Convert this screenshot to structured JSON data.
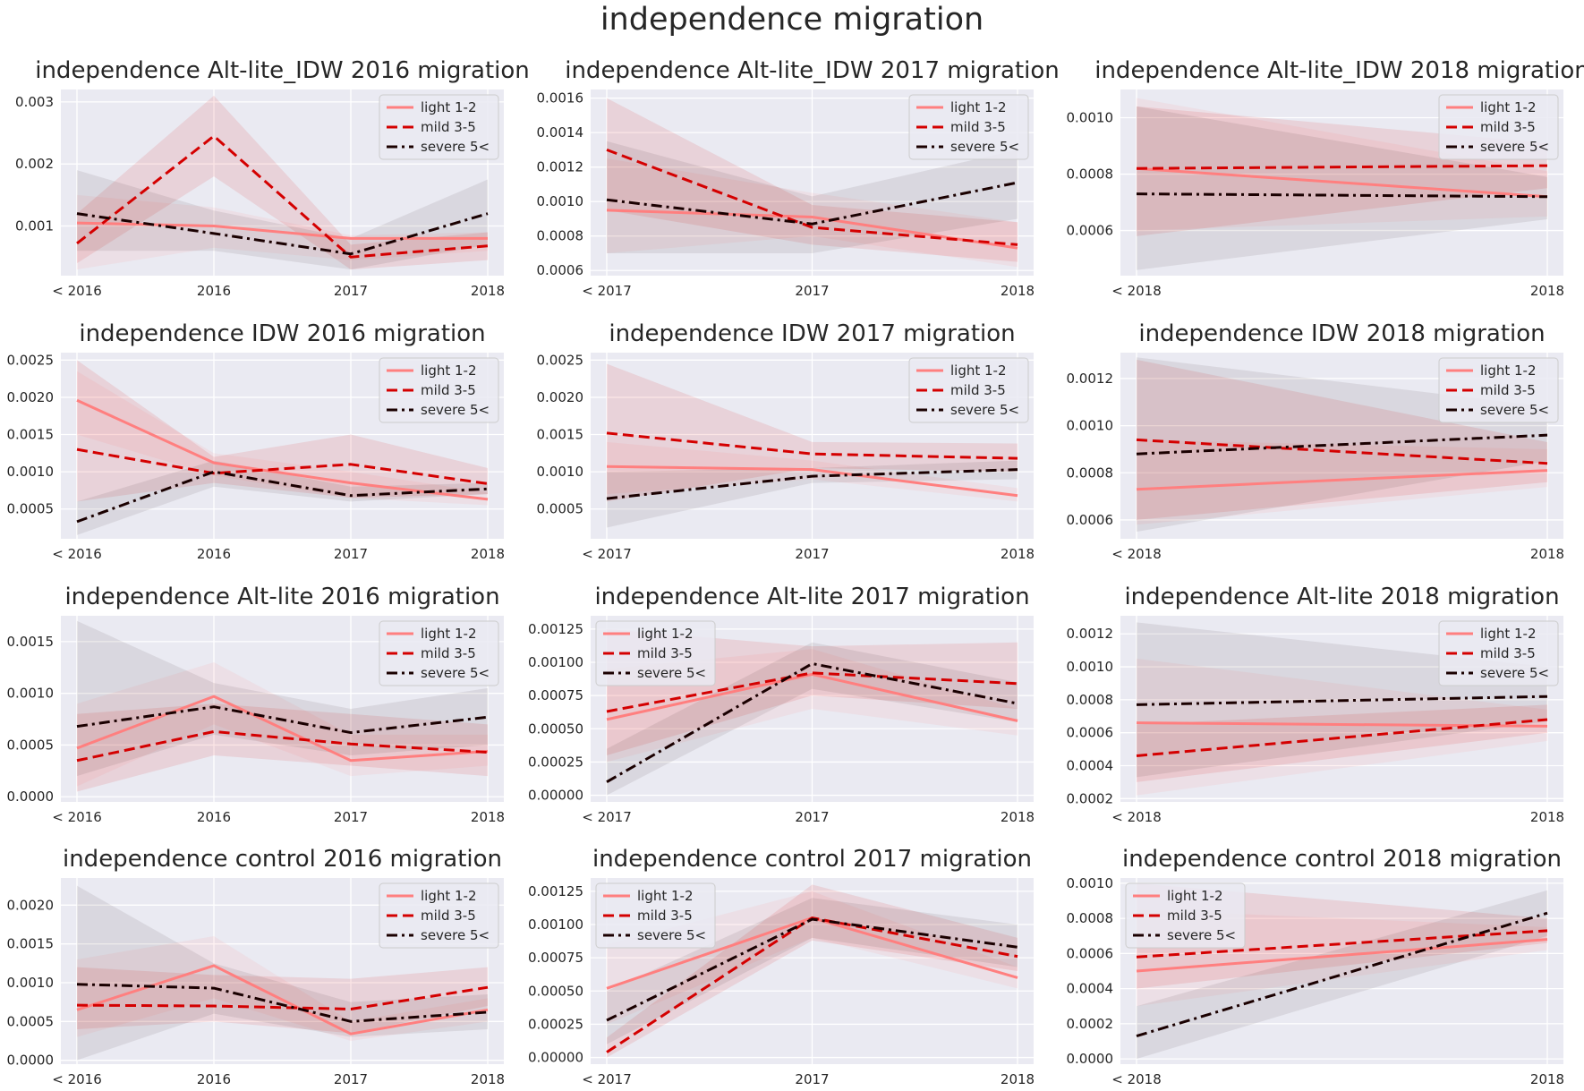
{
  "figure": {
    "title": "independence migration",
    "colors": {
      "background": "#eaeaf2",
      "grid": "#ffffff",
      "light": "#ff7f7f",
      "mild": "#d40000",
      "severe": "#1a0000"
    }
  },
  "legend_labels": [
    "light 1-2",
    "mild 3-5",
    "severe 5<"
  ],
  "chart_data": [
    {
      "type": "line",
      "title": "independence Alt-lite_IDW 2016 migration",
      "categories": [
        "< 2016",
        "2016",
        "2017",
        "2018"
      ],
      "yticks": [
        "0.001",
        "0.002",
        "0.003"
      ],
      "ylim": [
        0.0002,
        0.0032
      ],
      "legend": "top-right",
      "series": [
        {
          "name": "light 1-2",
          "values": [
            0.00105,
            0.001,
            0.0008,
            0.0008
          ],
          "lower": [
            0.0003,
            0.00065,
            0.00045,
            0.0006
          ],
          "upper": [
            0.0015,
            0.0013,
            0.00085,
            0.0009
          ]
        },
        {
          "name": "mild 3-5",
          "values": [
            0.00072,
            0.00245,
            0.0005,
            0.00068
          ],
          "lower": [
            0.0004,
            0.0018,
            0.0003,
            0.00045
          ],
          "upper": [
            0.0012,
            0.0031,
            0.0007,
            0.0009
          ]
        },
        {
          "name": "severe 5<",
          "values": [
            0.0012,
            0.00088,
            0.00055,
            0.0012
          ],
          "lower": [
            0.0006,
            0.0006,
            0.0003,
            0.0007
          ],
          "upper": [
            0.0019,
            0.00125,
            0.0008,
            0.00175
          ]
        }
      ]
    },
    {
      "type": "line",
      "title": "independence Alt-lite_IDW 2017 migration",
      "categories": [
        "< 2017",
        "2017",
        "2018"
      ],
      "yticks": [
        "0.0006",
        "0.0008",
        "0.0010",
        "0.0012",
        "0.0014",
        "0.0016"
      ],
      "ylim": [
        0.00057,
        0.00165
      ],
      "legend": "top-right",
      "series": [
        {
          "name": "light 1-2",
          "values": [
            0.00095,
            0.00091,
            0.00073
          ],
          "lower": [
            0.0007,
            0.0008,
            0.00062
          ],
          "upper": [
            0.00125,
            0.00105,
            0.00088
          ]
        },
        {
          "name": "mild 3-5",
          "values": [
            0.0013,
            0.00085,
            0.00075
          ],
          "lower": [
            0.00095,
            0.00075,
            0.00065
          ],
          "upper": [
            0.0016,
            0.00098,
            0.00088
          ]
        },
        {
          "name": "severe 5<",
          "values": [
            0.00101,
            0.00087,
            0.00111
          ],
          "lower": [
            0.0007,
            0.0007,
            0.0009
          ],
          "upper": [
            0.00135,
            0.00103,
            0.0013
          ]
        }
      ]
    },
    {
      "type": "line",
      "title": "independence Alt-lite_IDW 2018 migration",
      "categories": [
        "< 2018",
        "2018"
      ],
      "yticks": [
        "0.0006",
        "0.0008",
        "0.0010"
      ],
      "ylim": [
        0.00044,
        0.0011
      ],
      "legend": "top-right",
      "series": [
        {
          "name": "light 1-2",
          "values": [
            0.00082,
            0.00072
          ],
          "lower": [
            0.0006,
            0.00065
          ],
          "upper": [
            0.00107,
            0.00081
          ]
        },
        {
          "name": "mild 3-5",
          "values": [
            0.00082,
            0.00083
          ],
          "lower": [
            0.00058,
            0.00075
          ],
          "upper": [
            0.00104,
            0.00091
          ]
        },
        {
          "name": "severe 5<",
          "values": [
            0.00073,
            0.00072
          ],
          "lower": [
            0.00046,
            0.00064
          ],
          "upper": [
            0.00104,
            0.00079
          ]
        }
      ]
    },
    {
      "type": "line",
      "title": "independence IDW 2016 migration",
      "categories": [
        "< 2016",
        "2016",
        "2017",
        "2018"
      ],
      "yticks": [
        "0.0005",
        "0.0010",
        "0.0015",
        "0.0020",
        "0.0025"
      ],
      "ylim": [
        0.0001,
        0.0026
      ],
      "legend": "top-right",
      "series": [
        {
          "name": "light 1-2",
          "values": [
            0.00196,
            0.00112,
            0.00085,
            0.00063
          ],
          "lower": [
            0.0015,
            0.00095,
            0.00065,
            0.00055
          ],
          "upper": [
            0.00235,
            0.00125,
            0.001,
            0.00072
          ]
        },
        {
          "name": "mild 3-5",
          "values": [
            0.0013,
            0.00098,
            0.0011,
            0.00084
          ],
          "lower": [
            0.0006,
            0.00085,
            0.00065,
            0.0007
          ],
          "upper": [
            0.0025,
            0.0012,
            0.0015,
            0.00105
          ]
        },
        {
          "name": "severe 5<",
          "values": [
            0.00033,
            0.001,
            0.00068,
            0.00077
          ],
          "lower": [
            0.00015,
            0.0008,
            0.0006,
            0.0007
          ],
          "upper": [
            0.0006,
            0.00115,
            0.0008,
            0.00085
          ]
        }
      ]
    },
    {
      "type": "line",
      "title": "independence IDW 2017 migration",
      "categories": [
        "< 2017",
        "2017",
        "2018"
      ],
      "yticks": [
        "0.0005",
        "0.0010",
        "0.0015",
        "0.0020",
        "0.0025"
      ],
      "ylim": [
        0.0001,
        0.0026
      ],
      "legend": "top-right",
      "series": [
        {
          "name": "light 1-2",
          "values": [
            0.00107,
            0.00103,
            0.00068
          ],
          "lower": [
            0.0007,
            0.0009,
            0.0006
          ],
          "upper": [
            0.0014,
            0.00115,
            0.00078
          ]
        },
        {
          "name": "mild 3-5",
          "values": [
            0.00152,
            0.00124,
            0.00118
          ],
          "lower": [
            0.0006,
            0.00105,
            0.001
          ],
          "upper": [
            0.00245,
            0.0014,
            0.00138
          ]
        },
        {
          "name": "severe 5<",
          "values": [
            0.00064,
            0.00094,
            0.00103
          ],
          "lower": [
            0.00025,
            0.00085,
            0.0009
          ],
          "upper": [
            0.001,
            0.00105,
            0.00115
          ]
        }
      ]
    },
    {
      "type": "line",
      "title": "independence IDW 2018 migration",
      "categories": [
        "< 2018",
        "2018"
      ],
      "yticks": [
        "0.0006",
        "0.0008",
        "0.0010",
        "0.0012"
      ],
      "ylim": [
        0.00052,
        0.00131
      ],
      "legend": "top-right",
      "series": [
        {
          "name": "light 1-2",
          "values": [
            0.00073,
            0.00081
          ],
          "lower": [
            0.00058,
            0.00074
          ],
          "upper": [
            0.00094,
            0.0009
          ]
        },
        {
          "name": "mild 3-5",
          "values": [
            0.00094,
            0.00084
          ],
          "lower": [
            0.0006,
            0.00076
          ],
          "upper": [
            0.00128,
            0.00093
          ]
        },
        {
          "name": "severe 5<",
          "values": [
            0.00088,
            0.00096
          ],
          "lower": [
            0.00055,
            0.00085
          ],
          "upper": [
            0.00129,
            0.00108
          ]
        }
      ]
    },
    {
      "type": "line",
      "title": "independence Alt-lite 2016 migration",
      "categories": [
        "< 2016",
        "2016",
        "2017",
        "2018"
      ],
      "yticks": [
        "0.0000",
        "0.0005",
        "0.0010",
        "0.0015"
      ],
      "ylim": [
        -5e-05,
        0.00175
      ],
      "legend": "top-right",
      "series": [
        {
          "name": "light 1-2",
          "values": [
            0.00047,
            0.00097,
            0.00035,
            0.00044
          ],
          "lower": [
            0.0001,
            0.0007,
            0.0002,
            0.0003
          ],
          "upper": [
            0.0009,
            0.0013,
            0.0006,
            0.0006
          ]
        },
        {
          "name": "mild 3-5",
          "values": [
            0.00035,
            0.00063,
            0.00051,
            0.00043
          ],
          "lower": [
            5e-05,
            0.0004,
            0.0003,
            0.0002
          ],
          "upper": [
            0.0008,
            0.0009,
            0.0008,
            0.0007
          ]
        },
        {
          "name": "severe 5<",
          "values": [
            0.00068,
            0.00087,
            0.00062,
            0.00077
          ],
          "lower": [
            0.0002,
            0.0006,
            0.0004,
            0.0005
          ],
          "upper": [
            0.0017,
            0.0011,
            0.00085,
            0.00105
          ]
        }
      ]
    },
    {
      "type": "line",
      "title": "independence Alt-lite 2017 migration",
      "categories": [
        "< 2017",
        "2017",
        "2018"
      ],
      "yticks": [
        "0.00000",
        "0.00025",
        "0.00050",
        "0.00075",
        "0.00100",
        "0.00125"
      ],
      "ylim": [
        -5e-05,
        0.00135
      ],
      "legend": "top-left",
      "series": [
        {
          "name": "light 1-2",
          "values": [
            0.00057,
            0.00091,
            0.00056
          ],
          "lower": [
            0.00025,
            0.00065,
            0.00045
          ],
          "upper": [
            0.00095,
            0.0011,
            0.00065
          ]
        },
        {
          "name": "mild 3-5",
          "values": [
            0.00063,
            0.00092,
            0.00084
          ],
          "lower": [
            0.0003,
            0.00075,
            0.00065
          ],
          "upper": [
            0.00125,
            0.00112,
            0.00115
          ]
        },
        {
          "name": "severe 5<",
          "values": [
            0.0001,
            0.00099,
            0.00069
          ],
          "lower": [
            0.0,
            0.0008,
            0.00055
          ],
          "upper": [
            0.00035,
            0.00115,
            0.00085
          ]
        }
      ]
    },
    {
      "type": "line",
      "title": "independence Alt-lite 2018 migration",
      "categories": [
        "< 2018",
        "2018"
      ],
      "yticks": [
        "0.0002",
        "0.0004",
        "0.0006",
        "0.0008",
        "0.0010",
        "0.0012"
      ],
      "ylim": [
        0.00018,
        0.00131
      ],
      "legend": "top-right",
      "series": [
        {
          "name": "light 1-2",
          "values": [
            0.00066,
            0.00064
          ],
          "lower": [
            0.00022,
            0.00055
          ],
          "upper": [
            0.00105,
            0.00074
          ]
        },
        {
          "name": "mild 3-5",
          "values": [
            0.00046,
            0.00068
          ],
          "lower": [
            0.0003,
            0.0006
          ],
          "upper": [
            0.00065,
            0.00077
          ]
        },
        {
          "name": "severe 5<",
          "values": [
            0.00077,
            0.00082
          ],
          "lower": [
            0.00033,
            0.00067
          ],
          "upper": [
            0.00127,
            0.001
          ]
        }
      ]
    },
    {
      "type": "line",
      "title": "independence control 2016 migration",
      "categories": [
        "< 2016",
        "2016",
        "2017",
        "2018"
      ],
      "yticks": [
        "0.0000",
        "0.0005",
        "0.0010",
        "0.0015",
        "0.0020"
      ],
      "ylim": [
        -5e-05,
        0.00235
      ],
      "legend": "top-right",
      "series": [
        {
          "name": "light 1-2",
          "values": [
            0.00065,
            0.00122,
            0.00034,
            0.00065
          ],
          "lower": [
            0.0003,
            0.0008,
            0.00025,
            0.0005
          ],
          "upper": [
            0.0013,
            0.0016,
            0.0005,
            0.0008
          ]
        },
        {
          "name": "mild 3-5",
          "values": [
            0.00071,
            0.0007,
            0.00066,
            0.00094
          ],
          "lower": [
            0.0004,
            0.0005,
            0.00035,
            0.0007
          ],
          "upper": [
            0.0012,
            0.0011,
            0.00105,
            0.0012
          ]
        },
        {
          "name": "severe 5<",
          "values": [
            0.00098,
            0.00093,
            0.0005,
            0.00062
          ],
          "lower": [
            0.0,
            0.0006,
            0.0003,
            0.0004
          ],
          "upper": [
            0.00225,
            0.00125,
            0.00075,
            0.00085
          ]
        }
      ]
    },
    {
      "type": "line",
      "title": "independence control 2017 migration",
      "categories": [
        "< 2017",
        "2017",
        "2018"
      ],
      "yticks": [
        "0.00000",
        "0.00025",
        "0.00050",
        "0.00075",
        "0.00100",
        "0.00125"
      ],
      "ylim": [
        -5e-05,
        0.00135
      ],
      "legend": "top-left",
      "series": [
        {
          "name": "light 1-2",
          "values": [
            0.00052,
            0.00105,
            0.0006
          ],
          "lower": [
            0.00025,
            0.0009,
            0.00052
          ],
          "upper": [
            0.00085,
            0.00125,
            0.00068
          ]
        },
        {
          "name": "mild 3-5",
          "values": [
            4e-05,
            0.00105,
            0.00076
          ],
          "lower": [
            0.0,
            0.00088,
            0.00065
          ],
          "upper": [
            0.00015,
            0.0013,
            0.0009
          ]
        },
        {
          "name": "severe 5<",
          "values": [
            0.00028,
            0.00104,
            0.00083
          ],
          "lower": [
            0.0001,
            0.0009,
            0.00068
          ],
          "upper": [
            0.0005,
            0.0012,
            0.001
          ]
        }
      ]
    },
    {
      "type": "line",
      "title": "independence control 2018 migration",
      "categories": [
        "< 2018",
        "2018"
      ],
      "yticks": [
        "0.0000",
        "0.0002",
        "0.0004",
        "0.0006",
        "0.0008",
        "0.0010"
      ],
      "ylim": [
        -3e-05,
        0.00103
      ],
      "legend": "top-left",
      "series": [
        {
          "name": "light 1-2",
          "values": [
            0.0005,
            0.00068
          ],
          "lower": [
            0.0003,
            0.00062
          ],
          "upper": [
            0.00085,
            0.00075
          ]
        },
        {
          "name": "mild 3-5",
          "values": [
            0.00058,
            0.00073
          ],
          "lower": [
            0.0004,
            0.00066
          ],
          "upper": [
            0.001,
            0.0008
          ]
        },
        {
          "name": "severe 5<",
          "values": [
            0.00013,
            0.00083
          ],
          "lower": [
            0.0,
            0.0007
          ],
          "upper": [
            0.0003,
            0.00096
          ]
        }
      ]
    }
  ]
}
